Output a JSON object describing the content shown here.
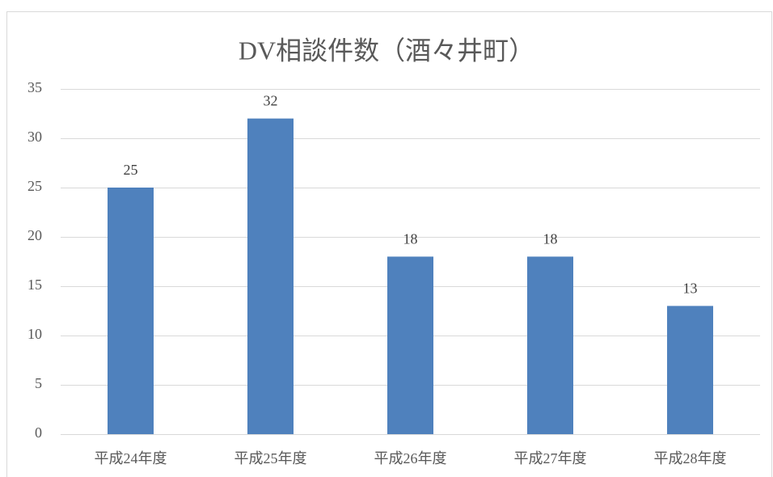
{
  "chart_data": {
    "type": "bar",
    "title": "DV相談件数（酒々井町）",
    "categories": [
      "平成24年度",
      "平成25年度",
      "平成26年度",
      "平成27年度",
      "平成28年度"
    ],
    "values": [
      25,
      32,
      18,
      18,
      13
    ],
    "color": "#4f81bd",
    "ylim": [
      0,
      35
    ],
    "yticks": [
      0,
      5,
      10,
      15,
      20,
      25,
      30,
      35
    ],
    "grid": true,
    "data_labels": true
  }
}
